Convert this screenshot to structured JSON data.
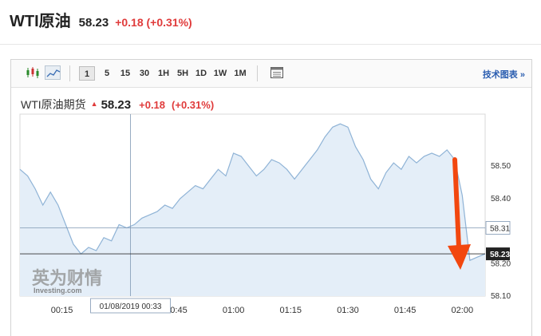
{
  "header": {
    "name": "WTI原油",
    "price": "58.23",
    "change": "+0.18 (+0.31%)"
  },
  "toolbar": {
    "intervals": [
      "1",
      "5",
      "15",
      "30",
      "1H",
      "5H",
      "1D",
      "1W",
      "1M"
    ],
    "active_interval": "1",
    "tech_chart_link": "技术图表 »",
    "icons": [
      "candlestick-icon",
      "line-chart-icon",
      "table-icon"
    ]
  },
  "subheader": {
    "name": "WTI原油期货",
    "price": "58.23",
    "change": "+0.18",
    "change_pct": "(+0.31%)"
  },
  "crosshair": {
    "date_label": "01/08/2019 00:33",
    "price_label": "58.31",
    "time_index": 33,
    "price": 58.31
  },
  "current_price_label": "58.23",
  "watermark": {
    "cn": "英为财情",
    "en": "Investing.com"
  },
  "colors": {
    "up": "#e03b3b",
    "line": "#8fb3d6",
    "fill": "#e4eef8",
    "link": "#2a5db0",
    "annotation_arrow": "#f2470f"
  },
  "chart_data": {
    "type": "area",
    "x_unit": "minutes after 00:00 on 01/08/2019",
    "x_ticks": [
      "00:15",
      "00:45",
      "01:00",
      "01:15",
      "01:30",
      "01:45",
      "02:00"
    ],
    "y_ticks": [
      "58.50",
      "58.40",
      "58.20",
      "58.10"
    ],
    "ylim": [
      58.1,
      58.66
    ],
    "xlim": [
      4,
      126
    ],
    "grid": false,
    "x": [
      4,
      6,
      8,
      10,
      12,
      14,
      16,
      18,
      20,
      22,
      24,
      26,
      28,
      30,
      32,
      34,
      36,
      38,
      40,
      42,
      44,
      46,
      48,
      50,
      52,
      54,
      56,
      58,
      60,
      62,
      64,
      66,
      68,
      70,
      72,
      74,
      76,
      78,
      80,
      82,
      84,
      86,
      88,
      90,
      92,
      94,
      96,
      98,
      100,
      102,
      104,
      106,
      108,
      110,
      112,
      114,
      116,
      118,
      120,
      122,
      124,
      126
    ],
    "values": [
      58.49,
      58.47,
      58.43,
      58.38,
      58.42,
      58.38,
      58.32,
      58.26,
      58.23,
      58.25,
      58.24,
      58.28,
      58.27,
      58.32,
      58.31,
      58.32,
      58.34,
      58.35,
      58.36,
      58.38,
      58.37,
      58.4,
      58.42,
      58.44,
      58.43,
      58.46,
      58.49,
      58.47,
      58.54,
      58.53,
      58.5,
      58.47,
      58.49,
      58.52,
      58.51,
      58.49,
      58.46,
      58.49,
      58.52,
      58.55,
      58.59,
      58.62,
      58.63,
      58.62,
      58.56,
      58.52,
      58.46,
      58.43,
      58.48,
      58.51,
      58.49,
      58.53,
      58.51,
      58.53,
      58.54,
      58.53,
      58.55,
      58.52,
      58.41,
      58.21,
      58.22,
      58.23
    ]
  }
}
